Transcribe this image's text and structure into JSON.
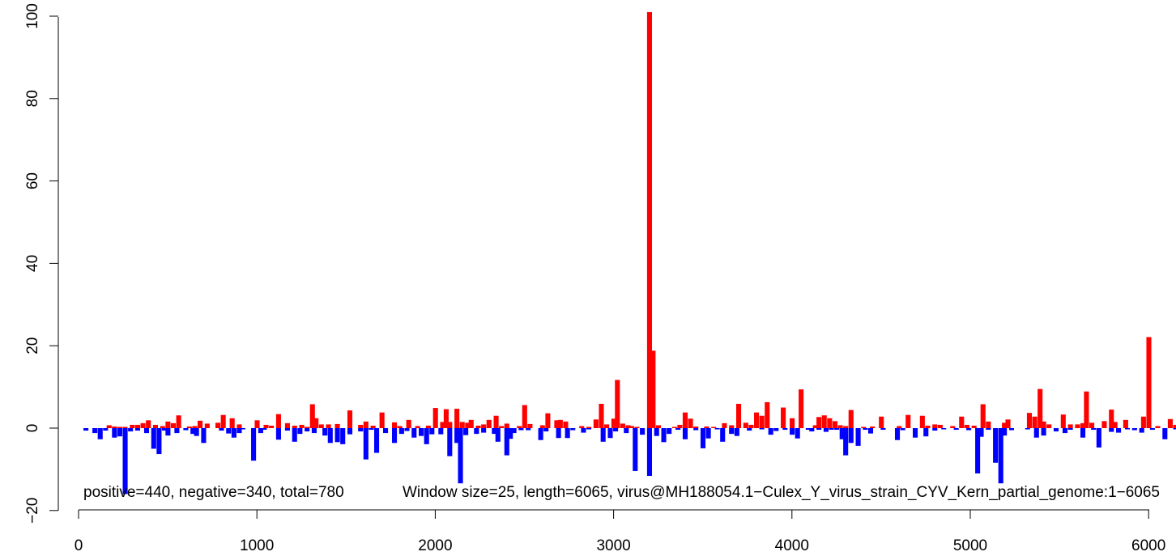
{
  "chart_data": {
    "type": "bar",
    "title": "",
    "xlabel": "",
    "ylabel": "",
    "xlim": [
      0,
      6065
    ],
    "ylim": [
      -20,
      100
    ],
    "x_ticks": [
      "0",
      "1000",
      "2000",
      "3000",
      "4000",
      "5000",
      "6000"
    ],
    "y_ticks": [
      "-20",
      "0",
      "20",
      "40",
      "60",
      "80",
      "100"
    ],
    "bin_width": 25,
    "colors": {
      "positive": "#ff0000",
      "negative": "#0000ff",
      "axis": "#000000"
    },
    "annotations": {
      "counts": "positive=440, negative=340, total=780",
      "window": "Window size=25, length=6065, virus@MH188054.1−Culex_Y_virus_strain_CYV_Kern_partial_genome:1−6065"
    },
    "series": [
      {
        "sign": "positive",
        "points": [
          [
            170,
            0.7
          ],
          [
            200,
            0.4
          ],
          [
            230,
            0.3
          ],
          [
            260,
            0.3
          ],
          [
            300,
            0.8
          ],
          [
            330,
            0.8
          ],
          [
            360,
            1.2
          ],
          [
            390,
            1.9
          ],
          [
            430,
            0.8
          ],
          [
            470,
            0.5
          ],
          [
            500,
            1.6
          ],
          [
            530,
            1.2
          ],
          [
            560,
            3.1
          ],
          [
            620,
            0.4
          ],
          [
            650,
            0.5
          ],
          [
            680,
            1.8
          ],
          [
            720,
            1.1
          ],
          [
            780,
            1.3
          ],
          [
            810,
            3.2
          ],
          [
            860,
            2.4
          ],
          [
            900,
            0.9
          ],
          [
            1000,
            1.9
          ],
          [
            1050,
            0.8
          ],
          [
            1080,
            0.6
          ],
          [
            1120,
            3.4
          ],
          [
            1170,
            1.2
          ],
          [
            1210,
            0.6
          ],
          [
            1250,
            0.8
          ],
          [
            1280,
            0.3
          ],
          [
            1310,
            5.8
          ],
          [
            1330,
            2.4
          ],
          [
            1360,
            0.9
          ],
          [
            1400,
            0.9
          ],
          [
            1450,
            1.0
          ],
          [
            1520,
            4.3
          ],
          [
            1580,
            0.8
          ],
          [
            1610,
            1.6
          ],
          [
            1650,
            0.6
          ],
          [
            1700,
            3.8
          ],
          [
            1770,
            1.4
          ],
          [
            1800,
            0.5
          ],
          [
            1850,
            2.0
          ],
          [
            1900,
            0.5
          ],
          [
            1960,
            0.6
          ],
          [
            2000,
            4.9
          ],
          [
            2040,
            1.5
          ],
          [
            2060,
            4.6
          ],
          [
            2080,
            1.5
          ],
          [
            2120,
            4.7
          ],
          [
            2150,
            1.5
          ],
          [
            2180,
            1.3
          ],
          [
            2200,
            2.0
          ],
          [
            2240,
            0.6
          ],
          [
            2270,
            0.9
          ],
          [
            2300,
            2.0
          ],
          [
            2340,
            3.0
          ],
          [
            2370,
            0.5
          ],
          [
            2400,
            1.1
          ],
          [
            2470,
            0.5
          ],
          [
            2500,
            5.6
          ],
          [
            2530,
            1.0
          ],
          [
            2600,
            0.7
          ],
          [
            2630,
            3.6
          ],
          [
            2680,
            1.9
          ],
          [
            2700,
            2.0
          ],
          [
            2730,
            1.6
          ],
          [
            2820,
            0.5
          ],
          [
            2860,
            0.3
          ],
          [
            2900,
            2.1
          ],
          [
            2930,
            5.9
          ],
          [
            2960,
            0.9
          ],
          [
            3000,
            2.3
          ],
          [
            3020,
            11.7
          ],
          [
            3050,
            1.1
          ],
          [
            3080,
            0.7
          ],
          [
            3100,
            0.5
          ],
          [
            3130,
            0.3
          ],
          [
            3200,
            101.0
          ],
          [
            3220,
            18.8
          ],
          [
            3250,
            0.7
          ],
          [
            3340,
            0.3
          ],
          [
            3370,
            0.8
          ],
          [
            3400,
            3.8
          ],
          [
            3430,
            2.3
          ],
          [
            3460,
            0.4
          ],
          [
            3520,
            0.4
          ],
          [
            3560,
            0.3
          ],
          [
            3620,
            1.2
          ],
          [
            3660,
            0.7
          ],
          [
            3700,
            5.9
          ],
          [
            3740,
            1.3
          ],
          [
            3770,
            0.8
          ],
          [
            3800,
            3.8
          ],
          [
            3830,
            3.0
          ],
          [
            3860,
            6.3
          ],
          [
            3950,
            5.0
          ],
          [
            4000,
            2.4
          ],
          [
            4050,
            9.4
          ],
          [
            4130,
            0.7
          ],
          [
            4150,
            2.7
          ],
          [
            4180,
            3.1
          ],
          [
            4210,
            2.4
          ],
          [
            4240,
            1.7
          ],
          [
            4270,
            0.7
          ],
          [
            4300,
            0.5
          ],
          [
            4330,
            4.4
          ],
          [
            4400,
            0.3
          ],
          [
            4450,
            0.4
          ],
          [
            4500,
            2.8
          ],
          [
            4600,
            0.5
          ],
          [
            4650,
            3.2
          ],
          [
            4730,
            3.0
          ],
          [
            4760,
            0.6
          ],
          [
            4800,
            0.9
          ],
          [
            4830,
            0.8
          ],
          [
            4900,
            0.5
          ],
          [
            4950,
            2.8
          ],
          [
            4980,
            0.8
          ],
          [
            5020,
            0.6
          ],
          [
            5070,
            5.8
          ],
          [
            5100,
            1.6
          ],
          [
            5190,
            1.3
          ],
          [
            5210,
            2.1
          ],
          [
            5330,
            3.7
          ],
          [
            5360,
            2.8
          ],
          [
            5390,
            9.5
          ],
          [
            5410,
            1.6
          ],
          [
            5440,
            0.9
          ],
          [
            5520,
            3.3
          ],
          [
            5560,
            0.9
          ],
          [
            5600,
            0.9
          ],
          [
            5630,
            1.2
          ],
          [
            5650,
            8.9
          ],
          [
            5680,
            1.3
          ],
          [
            5750,
            1.7
          ],
          [
            5790,
            4.5
          ],
          [
            5810,
            1.5
          ],
          [
            5870,
            2.0
          ],
          [
            5970,
            2.8
          ],
          [
            6000,
            22.1
          ],
          [
            6050,
            0.5
          ],
          [
            6120,
            2.2
          ],
          [
            6150,
            0.8
          ]
        ]
      },
      {
        "sign": "negative",
        "points": [
          [
            40,
            -0.6
          ],
          [
            90,
            -1.2
          ],
          [
            120,
            -2.7
          ],
          [
            150,
            -0.6
          ],
          [
            200,
            -2.3
          ],
          [
            230,
            -2.0
          ],
          [
            260,
            -16.0
          ],
          [
            290,
            -0.8
          ],
          [
            330,
            -0.6
          ],
          [
            380,
            -1.2
          ],
          [
            420,
            -5.0
          ],
          [
            450,
            -6.3
          ],
          [
            480,
            -0.6
          ],
          [
            500,
            -1.8
          ],
          [
            550,
            -1.2
          ],
          [
            600,
            -0.5
          ],
          [
            640,
            -1.4
          ],
          [
            660,
            -1.9
          ],
          [
            700,
            -3.6
          ],
          [
            800,
            -0.6
          ],
          [
            840,
            -1.3
          ],
          [
            870,
            -2.3
          ],
          [
            900,
            -1.2
          ],
          [
            920,
            -0.3
          ],
          [
            980,
            -7.9
          ],
          [
            1020,
            -1.2
          ],
          [
            1040,
            -0.4
          ],
          [
            1120,
            -2.8
          ],
          [
            1170,
            -0.6
          ],
          [
            1210,
            -3.3
          ],
          [
            1240,
            -1.4
          ],
          [
            1280,
            -0.8
          ],
          [
            1320,
            -1.2
          ],
          [
            1380,
            -1.8
          ],
          [
            1410,
            -3.6
          ],
          [
            1450,
            -3.4
          ],
          [
            1480,
            -3.9
          ],
          [
            1520,
            -1.5
          ],
          [
            1580,
            -0.8
          ],
          [
            1610,
            -7.6
          ],
          [
            1640,
            -0.4
          ],
          [
            1670,
            -6.0
          ],
          [
            1720,
            -1.2
          ],
          [
            1770,
            -3.6
          ],
          [
            1810,
            -1.4
          ],
          [
            1840,
            -0.7
          ],
          [
            1880,
            -2.3
          ],
          [
            1920,
            -1.9
          ],
          [
            1950,
            -3.9
          ],
          [
            1980,
            -1.5
          ],
          [
            2030,
            -1.5
          ],
          [
            2080,
            -6.8
          ],
          [
            2120,
            -3.6
          ],
          [
            2140,
            -13.4
          ],
          [
            2170,
            -1.7
          ],
          [
            2230,
            -1.4
          ],
          [
            2270,
            -1.1
          ],
          [
            2330,
            -1.4
          ],
          [
            2350,
            -3.3
          ],
          [
            2400,
            -6.6
          ],
          [
            2420,
            -2.6
          ],
          [
            2440,
            -1.2
          ],
          [
            2480,
            -0.5
          ],
          [
            2520,
            -0.5
          ],
          [
            2590,
            -2.9
          ],
          [
            2620,
            -0.8
          ],
          [
            2690,
            -2.4
          ],
          [
            2740,
            -2.4
          ],
          [
            2770,
            -0.5
          ],
          [
            2830,
            -1.1
          ],
          [
            2860,
            -0.3
          ],
          [
            2940,
            -3.3
          ],
          [
            2980,
            -2.4
          ],
          [
            3010,
            -0.8
          ],
          [
            3070,
            -1.2
          ],
          [
            3120,
            -10.4
          ],
          [
            3160,
            -1.6
          ],
          [
            3200,
            -11.6
          ],
          [
            3240,
            -1.9
          ],
          [
            3280,
            -3.4
          ],
          [
            3310,
            -1.4
          ],
          [
            3360,
            -0.4
          ],
          [
            3400,
            -2.7
          ],
          [
            3460,
            -0.5
          ],
          [
            3500,
            -4.9
          ],
          [
            3530,
            -2.5
          ],
          [
            3580,
            -0.3
          ],
          [
            3610,
            -3.3
          ],
          [
            3660,
            -1.4
          ],
          [
            3690,
            -1.9
          ],
          [
            3760,
            -0.6
          ],
          [
            3830,
            -0.3
          ],
          [
            3880,
            -1.6
          ],
          [
            3910,
            -0.7
          ],
          [
            3960,
            -0.4
          ],
          [
            4000,
            -1.6
          ],
          [
            4030,
            -2.5
          ],
          [
            4090,
            -0.4
          ],
          [
            4110,
            -0.8
          ],
          [
            4150,
            -0.4
          ],
          [
            4190,
            -0.9
          ],
          [
            4220,
            -0.4
          ],
          [
            4250,
            -0.4
          ],
          [
            4280,
            -2.7
          ],
          [
            4300,
            -6.6
          ],
          [
            4330,
            -3.6
          ],
          [
            4370,
            -4.3
          ],
          [
            4410,
            -0.4
          ],
          [
            4440,
            -1.3
          ],
          [
            4510,
            -0.4
          ],
          [
            4590,
            -2.9
          ],
          [
            4620,
            -0.5
          ],
          [
            4690,
            -2.3
          ],
          [
            4750,
            -2.0
          ],
          [
            4800,
            -0.6
          ],
          [
            4850,
            -0.3
          ],
          [
            4920,
            -0.4
          ],
          [
            4990,
            -0.5
          ],
          [
            5040,
            -11.0
          ],
          [
            5060,
            -2.1
          ],
          [
            5100,
            -0.4
          ],
          [
            5140,
            -8.4
          ],
          [
            5170,
            -13.4
          ],
          [
            5190,
            -1.8
          ],
          [
            5230,
            -0.5
          ],
          [
            5320,
            -0.3
          ],
          [
            5370,
            -2.3
          ],
          [
            5410,
            -1.8
          ],
          [
            5480,
            -0.8
          ],
          [
            5530,
            -1.2
          ],
          [
            5560,
            -0.4
          ],
          [
            5630,
            -2.3
          ],
          [
            5690,
            -0.4
          ],
          [
            5720,
            -4.7
          ],
          [
            5790,
            -0.9
          ],
          [
            5830,
            -1.1
          ],
          [
            5880,
            -0.3
          ],
          [
            5920,
            -0.5
          ],
          [
            5960,
            -1.1
          ],
          [
            6020,
            -0.4
          ],
          [
            6090,
            -2.7
          ],
          [
            6150,
            -0.3
          ]
        ]
      }
    ]
  }
}
